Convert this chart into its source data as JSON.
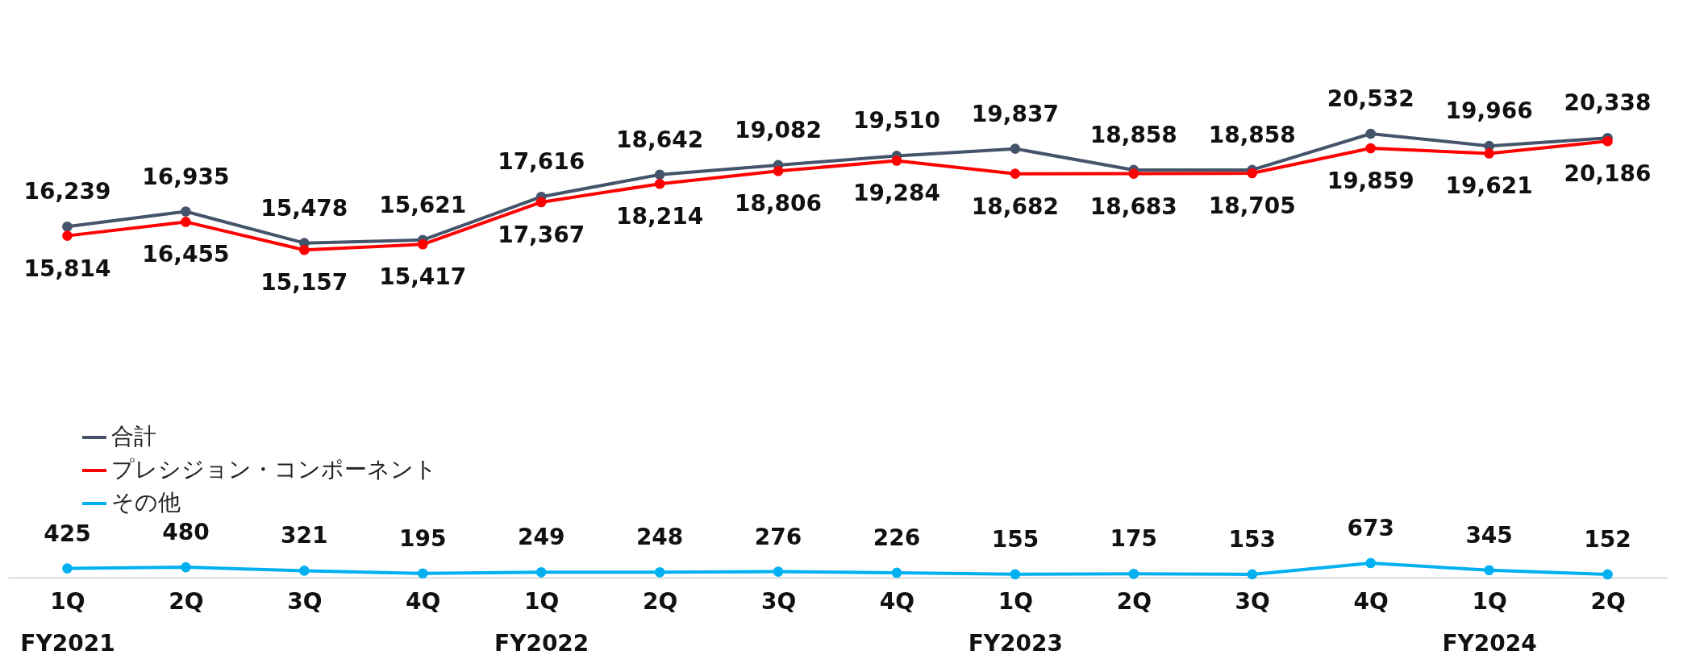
{
  "chart_data": {
    "type": "line",
    "categories": [
      "1Q\nFY2021",
      "2Q",
      "3Q",
      "4Q",
      "1Q\nFY2022",
      "2Q",
      "3Q",
      "4Q",
      "1Q\nFY2023",
      "2Q",
      "3Q",
      "4Q",
      "1Q\nFY2024",
      "2Q"
    ],
    "series": [
      {
        "name": "合計",
        "color": "#44546a",
        "values": [
          16239,
          16935,
          15478,
          15621,
          17616,
          18642,
          19082,
          19510,
          19837,
          18858,
          18858,
          20532,
          19966,
          20338
        ],
        "value_labels": [
          "16,239",
          "16,935",
          "15,478",
          "15,621",
          "17,616",
          "18,642",
          "19,082",
          "19,510",
          "19,837",
          "18,858",
          "18,858",
          "20,532",
          "19,966",
          "20,338"
        ]
      },
      {
        "name": "プレシジョン・コンポーネント",
        "color": "#ff0000",
        "values": [
          15814,
          16455,
          15157,
          15417,
          17367,
          18214,
          18806,
          19284,
          18682,
          18683,
          18705,
          19859,
          19621,
          20186
        ],
        "value_labels": [
          "15,814",
          "16,455",
          "15,157",
          "15,417",
          "17,367",
          "18,214",
          "18,806",
          "19,284",
          "18,682",
          "18,683",
          "18,705",
          "19,859",
          "19,621",
          "20,186"
        ]
      },
      {
        "name": "その他",
        "color": "#00b0f0",
        "values": [
          425,
          480,
          321,
          195,
          249,
          248,
          276,
          226,
          155,
          175,
          153,
          673,
          345,
          152
        ],
        "value_labels": [
          "425",
          "480",
          "321",
          "195",
          "249",
          "248",
          "276",
          "226",
          "155",
          "175",
          "153",
          "673",
          "345",
          "152"
        ]
      }
    ],
    "tick_labels": "x",
    "legend": "left",
    "marker": "circle",
    "line_style": "solid",
    "grid": false
  }
}
